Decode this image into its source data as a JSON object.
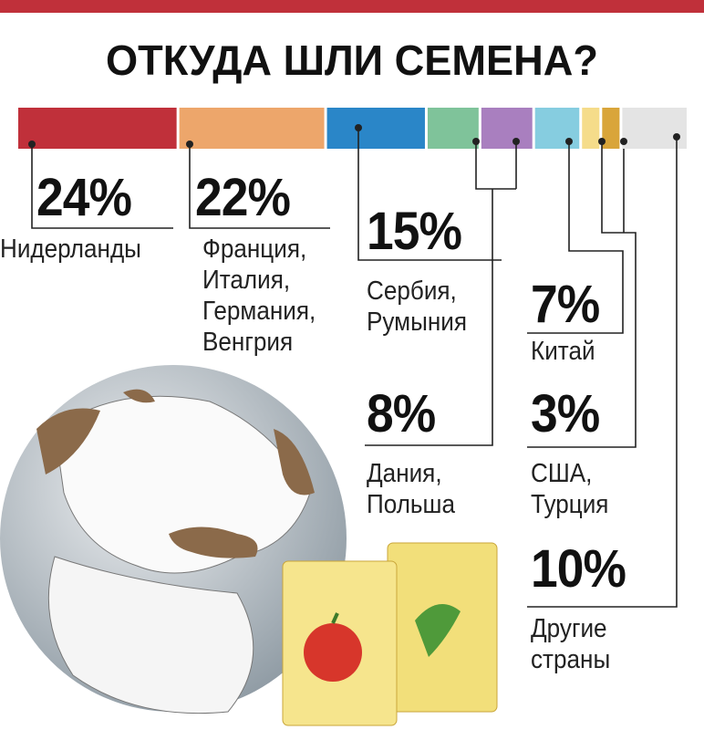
{
  "chart_data": {
    "type": "stacked-bar",
    "title": "ОТКУДА ШЛИ СЕМЕНА?",
    "xlim": [
      0,
      100
    ],
    "groups": [
      {
        "name": "Нидерланды",
        "value_label": "24%",
        "values": [
          24
        ],
        "colors": [
          "#c0303a"
        ]
      },
      {
        "name": "Франция,\nИталия,\nГермания,\nВенгрия",
        "value_label": "22%",
        "values": [
          22
        ],
        "colors": [
          "#eda66b"
        ]
      },
      {
        "name": "Сербия,\nРумыния",
        "value_label": "15%",
        "values": [
          15
        ],
        "colors": [
          "#2a86c8"
        ]
      },
      {
        "name": "Дания,\nПольша",
        "value_label": "8%",
        "values": [
          8,
          8
        ],
        "colors": [
          "#7fc39a",
          "#a97fbf"
        ]
      },
      {
        "name": "Китай",
        "value_label": "7%",
        "values": [
          7
        ],
        "colors": [
          "#86cde0"
        ]
      },
      {
        "name": "США,\nТурция",
        "value_label": "3%",
        "values": [
          3,
          3
        ],
        "colors": [
          "#f5dc8a",
          "#d9a53a"
        ]
      },
      {
        "name": "Другие\nстраны",
        "value_label": "10%",
        "values": [
          10
        ],
        "colors": [
          "#e4e4e4"
        ]
      }
    ]
  }
}
